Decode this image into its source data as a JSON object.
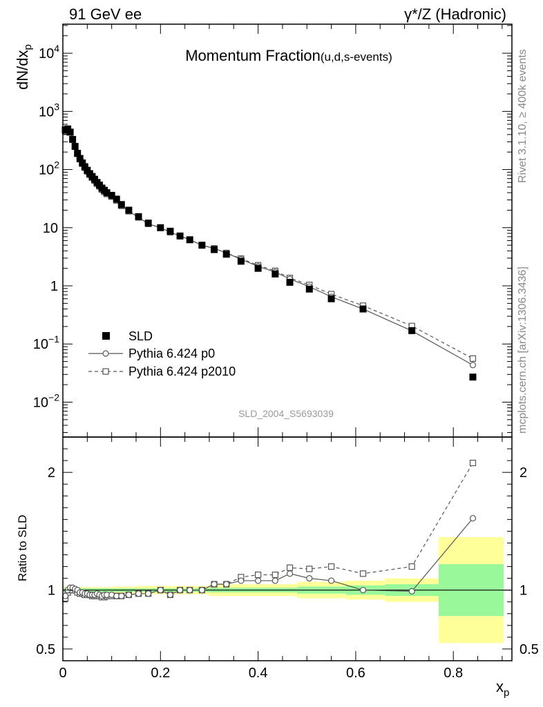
{
  "header": {
    "left": "91 GeV ee",
    "right": "γ*/Z (Hadronic)"
  },
  "side": {
    "rivet": "Rivet 3.1.10, ≥ 400k events",
    "mcplots": "mcplots.cern.ch [arXiv:1306.3436]"
  },
  "chart_data": {
    "type": "scatter",
    "title": "Momentum Fraction",
    "title_suffix": "(u,d,s-events)",
    "analysis_id": "SLD_2004_S5693039",
    "ylabel": "dN/dx",
    "ylabel_sub": "p",
    "xlabel": "x",
    "xlabel_sub": "p",
    "ratio_ylabel": "Ratio to SLD",
    "xlim": [
      0,
      0.92
    ],
    "ylim_log10": [
      -2.6,
      4.5
    ],
    "ratio_ylim": [
      0.4,
      2.3
    ],
    "main_y_ticks": [
      {
        "exp": 4,
        "label": "10",
        "sup": "4"
      },
      {
        "exp": 3,
        "label": "10",
        "sup": "3"
      },
      {
        "exp": 2,
        "label": "10",
        "sup": "2"
      },
      {
        "exp": 1,
        "label": "10",
        "sup": ""
      },
      {
        "exp": 0,
        "label": "1",
        "sup": ""
      },
      {
        "exp": -1,
        "label": "10",
        "sup": "−1"
      },
      {
        "exp": -2,
        "label": "10",
        "sup": "−2"
      }
    ],
    "ratio_ticks": [
      {
        "v": 2,
        "label": "2"
      },
      {
        "v": 1,
        "label": "1"
      },
      {
        "v": 0.5,
        "label": "0.5"
      }
    ],
    "x_ticks": [
      {
        "v": 0,
        "label": "0"
      },
      {
        "v": 0.2,
        "label": "0.2"
      },
      {
        "v": 0.4,
        "label": "0.4"
      },
      {
        "v": 0.6,
        "label": "0.6"
      },
      {
        "v": 0.8,
        "label": "0.8"
      }
    ],
    "legend_position": "lower-left",
    "series": [
      {
        "name": "SLD",
        "style": "filled-square",
        "color": "#000000",
        "x": [
          0.005,
          0.01,
          0.015,
          0.02,
          0.025,
          0.03,
          0.035,
          0.04,
          0.045,
          0.05,
          0.055,
          0.06,
          0.065,
          0.07,
          0.075,
          0.08,
          0.085,
          0.09,
          0.1,
          0.11,
          0.12,
          0.135,
          0.155,
          0.175,
          0.2,
          0.22,
          0.24,
          0.26,
          0.285,
          0.31,
          0.335,
          0.365,
          0.4,
          0.435,
          0.465,
          0.505,
          0.55,
          0.615,
          0.715,
          0.84
        ],
        "y": [
          480,
          500,
          440,
          330,
          250,
          190,
          155,
          130,
          112,
          97,
          85,
          76,
          68,
          60,
          54,
          48,
          44,
          40,
          36,
          31,
          25,
          20,
          15.5,
          12,
          10,
          8.7,
          7.2,
          6.2,
          5.0,
          4.2,
          3.5,
          2.65,
          2.0,
          1.6,
          1.15,
          0.88,
          0.6,
          0.4,
          0.17,
          0.027
        ]
      },
      {
        "name": "Pythia 6.424 p0",
        "style": "open-circle-solid",
        "color": "#555555",
        "x": [
          0.005,
          0.01,
          0.015,
          0.02,
          0.025,
          0.03,
          0.035,
          0.04,
          0.045,
          0.05,
          0.055,
          0.06,
          0.065,
          0.07,
          0.075,
          0.08,
          0.085,
          0.09,
          0.1,
          0.11,
          0.12,
          0.135,
          0.155,
          0.175,
          0.2,
          0.22,
          0.24,
          0.26,
          0.285,
          0.31,
          0.335,
          0.365,
          0.4,
          0.435,
          0.465,
          0.505,
          0.55,
          0.615,
          0.715,
          0.84
        ],
        "ratio": [
          0.95,
          1.0,
          1.02,
          1.02,
          1.01,
          1.0,
          0.98,
          0.98,
          0.97,
          0.97,
          0.96,
          0.96,
          0.96,
          0.97,
          0.96,
          0.95,
          0.96,
          0.96,
          0.96,
          0.95,
          0.95,
          0.96,
          0.97,
          0.97,
          1.0,
          0.96,
          1.0,
          1.0,
          1.0,
          1.05,
          1.05,
          1.08,
          1.08,
          1.08,
          1.14,
          1.1,
          1.08,
          1.0,
          0.99,
          1.61
        ]
      },
      {
        "name": "Pythia 6.424 p2010",
        "style": "open-square-dashed",
        "color": "#555555",
        "x": [
          0.005,
          0.01,
          0.015,
          0.02,
          0.025,
          0.03,
          0.035,
          0.04,
          0.045,
          0.05,
          0.055,
          0.06,
          0.065,
          0.07,
          0.075,
          0.08,
          0.085,
          0.09,
          0.1,
          0.11,
          0.12,
          0.135,
          0.155,
          0.175,
          0.2,
          0.22,
          0.24,
          0.26,
          0.285,
          0.31,
          0.335,
          0.365,
          0.4,
          0.435,
          0.465,
          0.505,
          0.55,
          0.615,
          0.715,
          0.84
        ],
        "ratio": [
          0.93,
          0.98,
          1.0,
          1.0,
          1.0,
          0.98,
          0.97,
          0.97,
          0.96,
          0.96,
          0.96,
          0.95,
          0.95,
          0.95,
          0.95,
          0.94,
          0.94,
          0.95,
          0.95,
          0.95,
          0.95,
          0.96,
          0.97,
          0.97,
          1.0,
          0.96,
          1.0,
          1.0,
          1.0,
          1.05,
          1.05,
          1.11,
          1.13,
          1.13,
          1.19,
          1.18,
          1.2,
          1.14,
          1.2,
          2.08
        ]
      }
    ],
    "uncertainty_bands": [
      {
        "x0": 0.0,
        "x1": 0.01,
        "inner": 0.02,
        "outer": 0.03
      },
      {
        "x0": 0.01,
        "x1": 0.1,
        "inner": 0.015,
        "outer": 0.025
      },
      {
        "x0": 0.1,
        "x1": 0.15,
        "inner": 0.015,
        "outer": 0.03
      },
      {
        "x0": 0.15,
        "x1": 0.3,
        "inner": 0.015,
        "outer": 0.035
      },
      {
        "x0": 0.3,
        "x1": 0.48,
        "inner": 0.02,
        "outer": 0.05
      },
      {
        "x0": 0.48,
        "x1": 0.58,
        "inner": 0.03,
        "outer": 0.07
      },
      {
        "x0": 0.58,
        "x1": 0.66,
        "inner": 0.04,
        "outer": 0.08
      },
      {
        "x0": 0.66,
        "x1": 0.77,
        "inner": 0.05,
        "outer": 0.1
      },
      {
        "x0": 0.77,
        "x1": 0.903,
        "inner": 0.22,
        "outer": 0.45
      }
    ],
    "band_colors": {
      "inner": "#99f899",
      "outer": "#ffff99"
    }
  }
}
